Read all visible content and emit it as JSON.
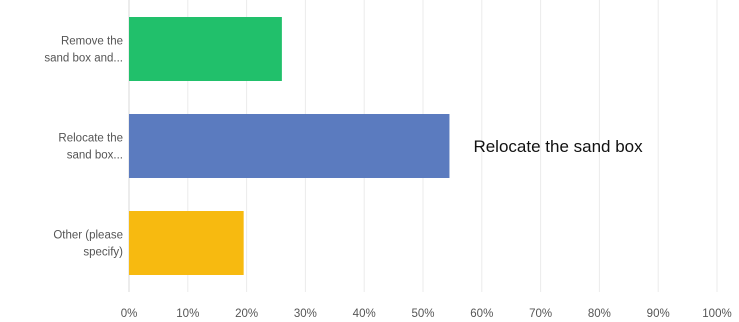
{
  "chart_data": {
    "type": "bar",
    "orientation": "horizontal",
    "categories": [
      [
        "Remove the",
        "sand box and..."
      ],
      [
        "Relocate the",
        "sand box..."
      ],
      [
        "Other (please",
        "specify)"
      ]
    ],
    "values": [
      26,
      54.5,
      19.5
    ],
    "colors": [
      "#21C06B",
      "#5B7BBF",
      "#F7BA10"
    ],
    "xlim": [
      0,
      100
    ],
    "x_ticks": [
      0,
      10,
      20,
      30,
      40,
      50,
      60,
      70,
      80,
      90,
      100
    ],
    "x_tick_labels": [
      "0%",
      "10%",
      "20%",
      "30%",
      "40%",
      "50%",
      "60%",
      "70%",
      "80%",
      "90%",
      "100%"
    ],
    "grid": true,
    "annotations": [
      {
        "text": "Relocate the sand box",
        "category_index": 1
      }
    ],
    "title": "",
    "xlabel": "",
    "ylabel": ""
  }
}
